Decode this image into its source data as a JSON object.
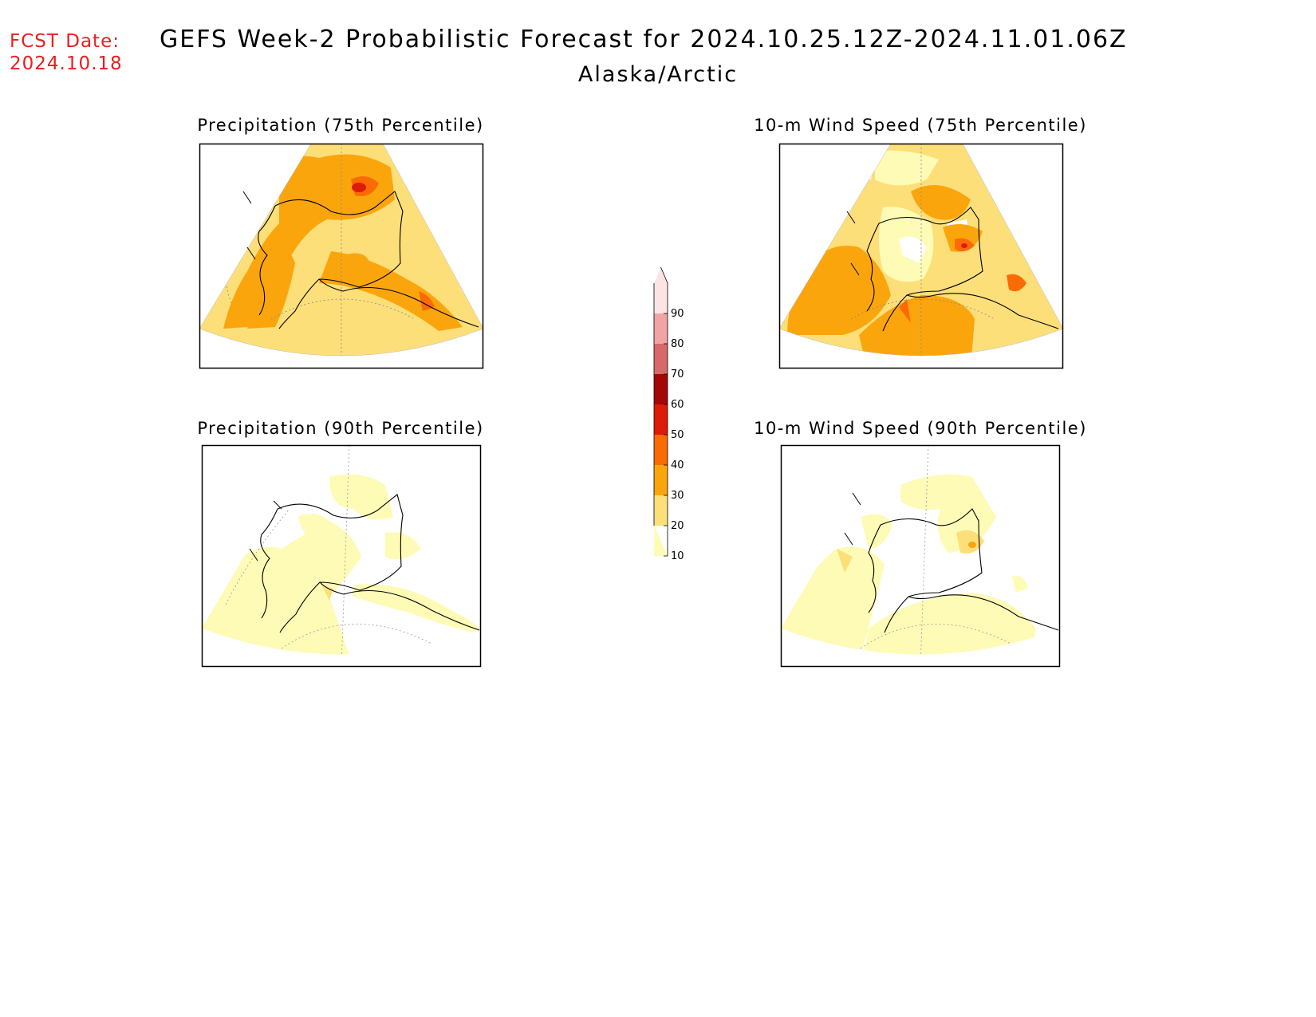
{
  "header": {
    "fcst_label": "FCST Date:",
    "fcst_date": "2024.10.18",
    "title": "GEFS Week-2 Probabilistic Forecast for 2024.10.25.12Z-2024.11.01.06Z",
    "region": "Alaska/Arctic"
  },
  "panels": [
    {
      "title": "Precipitation (75th Percentile)"
    },
    {
      "title": "10-m Wind Speed (75th Percentile)"
    },
    {
      "title": "Precipitation (90th Percentile)"
    },
    {
      "title": "10-m Wind Speed (90th Percentile)"
    }
  ],
  "colorbar": {
    "levels": [
      "10",
      "20",
      "30",
      "40",
      "50",
      "60",
      "70",
      "80",
      "90"
    ],
    "colors": [
      "#fefbb6",
      "#fddf7a",
      "#fba50d",
      "#fb6b05",
      "#de1a08",
      "#a30806",
      "#d8696a",
      "#f1a4a3",
      "#fde4e4"
    ]
  }
}
